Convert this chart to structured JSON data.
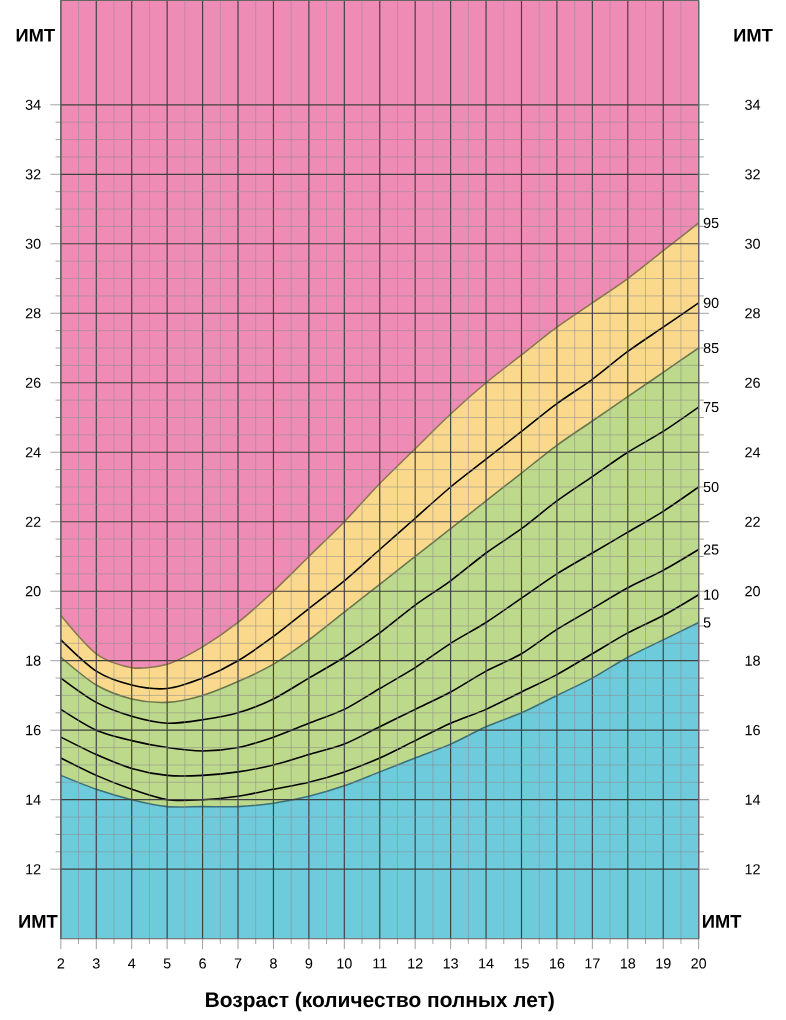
{
  "chart_data": {
    "type": "line",
    "xlabel": "Возраст (количество полных лет)",
    "ylabel": "ИМТ",
    "y2label": "ИМТ",
    "annotations": [
      "ИМТ",
      "ИМТ"
    ],
    "x": [
      2,
      3,
      4,
      5,
      6,
      7,
      8,
      9,
      10,
      11,
      12,
      13,
      14,
      15,
      16,
      17,
      18,
      19,
      20
    ],
    "xlim": [
      2,
      20
    ],
    "xticks": [
      2,
      3,
      4,
      5,
      6,
      7,
      8,
      9,
      10,
      11,
      12,
      13,
      14,
      15,
      16,
      17,
      18,
      19,
      20
    ],
    "ylim": [
      10,
      37
    ],
    "yticks": [
      12,
      14,
      16,
      18,
      20,
      22,
      24,
      26,
      28,
      30,
      32,
      34
    ],
    "y2lim": [
      10,
      37
    ],
    "y2ticks": [
      12,
      14,
      16,
      18,
      20,
      22,
      24,
      26,
      28,
      30,
      32,
      34
    ],
    "grid": true,
    "line_style": "solid",
    "marker": "none",
    "bands": [
      {
        "axis": "y",
        "from": 10,
        "to": 37,
        "color": "#ef8cb6"
      }
    ],
    "series": [
      {
        "name": "95",
        "type": "area",
        "color": "#fbd98c",
        "values": [
          19.3,
          18.2,
          17.8,
          17.9,
          18.4,
          19.1,
          20.0,
          21.0,
          22.0,
          23.1,
          24.1,
          25.1,
          26.0,
          26.8,
          27.6,
          28.3,
          29.0,
          29.8,
          30.6
        ]
      },
      {
        "name": "90",
        "color": "#000000",
        "values": [
          18.6,
          17.7,
          17.3,
          17.2,
          17.5,
          18.0,
          18.7,
          19.5,
          20.3,
          21.2,
          22.1,
          23.0,
          23.8,
          24.6,
          25.4,
          26.1,
          26.9,
          27.6,
          28.3
        ]
      },
      {
        "name": "85",
        "type": "area",
        "color": "#bdd98b",
        "values": [
          18.1,
          17.3,
          16.9,
          16.8,
          17.0,
          17.4,
          17.9,
          18.6,
          19.4,
          20.2,
          21.0,
          21.8,
          22.6,
          23.4,
          24.2,
          24.9,
          25.6,
          26.3,
          27.0
        ]
      },
      {
        "name": "75",
        "color": "#000000",
        "values": [
          17.5,
          16.8,
          16.4,
          16.2,
          16.3,
          16.5,
          16.9,
          17.5,
          18.1,
          18.8,
          19.6,
          20.3,
          21.1,
          21.8,
          22.6,
          23.3,
          24.0,
          24.6,
          25.3
        ]
      },
      {
        "name": "50",
        "color": "#000000",
        "values": [
          16.6,
          16.0,
          15.7,
          15.5,
          15.4,
          15.5,
          15.8,
          16.2,
          16.6,
          17.2,
          17.8,
          18.5,
          19.1,
          19.8,
          20.5,
          21.1,
          21.7,
          22.3,
          23.0
        ]
      },
      {
        "name": "25",
        "color": "#000000",
        "values": [
          15.8,
          15.3,
          14.9,
          14.7,
          14.7,
          14.8,
          15.0,
          15.3,
          15.6,
          16.1,
          16.6,
          17.1,
          17.7,
          18.2,
          18.9,
          19.5,
          20.1,
          20.6,
          21.2
        ]
      },
      {
        "name": "10",
        "color": "#000000",
        "values": [
          15.2,
          14.7,
          14.3,
          14.0,
          14.0,
          14.1,
          14.3,
          14.5,
          14.8,
          15.2,
          15.7,
          16.2,
          16.6,
          17.1,
          17.6,
          18.2,
          18.8,
          19.3,
          19.9
        ]
      },
      {
        "name": "5",
        "type": "area",
        "color": "#6dcbdc",
        "values": [
          14.7,
          14.3,
          14.0,
          13.8,
          13.8,
          13.8,
          13.9,
          14.1,
          14.4,
          14.8,
          15.2,
          15.6,
          16.1,
          16.5,
          17.0,
          17.5,
          18.1,
          18.6,
          19.1
        ]
      }
    ]
  }
}
